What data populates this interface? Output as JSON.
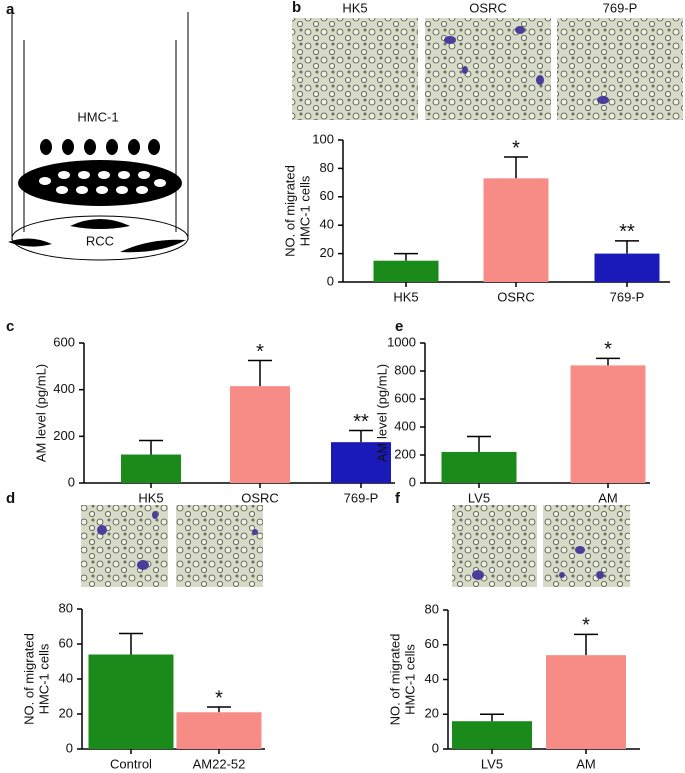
{
  "diagram": {
    "label": "a",
    "cell_label": "HMC-1",
    "bottom_label": "RCC"
  },
  "chart_data": [
    {
      "type": "bar",
      "panel": "b",
      "image_labels": [
        "HK5",
        "OSRC",
        "769-P"
      ],
      "ylabel": [
        "NO. of migrated",
        "HMC-1 cells"
      ],
      "categories": [
        "HK5",
        "OSRC",
        "769-P"
      ],
      "values": [
        15,
        73,
        20
      ],
      "errors": [
        5,
        15,
        9
      ],
      "colors": [
        "#1a8a1a",
        "#f78b86",
        "#1a1ab8"
      ],
      "stars": [
        null,
        "*",
        "**"
      ],
      "ylim": [
        0,
        100
      ],
      "yticks": [
        0,
        20,
        40,
        60,
        80,
        100
      ]
    },
    {
      "type": "bar",
      "panel": "c",
      "ylabel": [
        "AM level (pg/mL)"
      ],
      "categories": [
        "HK5",
        "OSRC",
        "769-P"
      ],
      "values": [
        122,
        415,
        175
      ],
      "errors": [
        60,
        110,
        50
      ],
      "colors": [
        "#1a8a1a",
        "#f78b86",
        "#1a1ab8"
      ],
      "stars": [
        null,
        "*",
        "**"
      ],
      "ylim": [
        0,
        600
      ],
      "yticks": [
        0,
        200,
        400,
        600
      ]
    },
    {
      "type": "bar",
      "panel": "d",
      "ylabel": [
        "NO. of migrated",
        "HMC-1 cells"
      ],
      "categories": [
        "Control",
        "AM22-52"
      ],
      "values": [
        54,
        21
      ],
      "errors": [
        12,
        3
      ],
      "colors": [
        "#1a8a1a",
        "#f78b86"
      ],
      "stars": [
        null,
        "*"
      ],
      "ylim": [
        0,
        80
      ],
      "yticks": [
        0,
        20,
        40,
        60,
        80
      ]
    },
    {
      "type": "bar",
      "panel": "e",
      "ylabel": [
        "AM level (pg/mL)"
      ],
      "categories": [
        "LV5",
        "AM"
      ],
      "values": [
        222,
        840
      ],
      "errors": [
        110,
        50
      ],
      "colors": [
        "#1a8a1a",
        "#f78b86"
      ],
      "stars": [
        null,
        "*"
      ],
      "ylim": [
        0,
        1000
      ],
      "yticks": [
        0,
        200,
        400,
        600,
        800,
        1000
      ]
    },
    {
      "type": "bar",
      "panel": "f",
      "ylabel": [
        "NO. of migrated",
        "HMC-1 cells"
      ],
      "categories": [
        "LV5",
        "AM"
      ],
      "values": [
        16,
        54
      ],
      "errors": [
        4,
        12
      ],
      "colors": [
        "#1a8a1a",
        "#f78b86"
      ],
      "stars": [
        null,
        "*"
      ],
      "ylim": [
        0,
        80
      ],
      "yticks": [
        0,
        20,
        40,
        60,
        80
      ]
    }
  ]
}
